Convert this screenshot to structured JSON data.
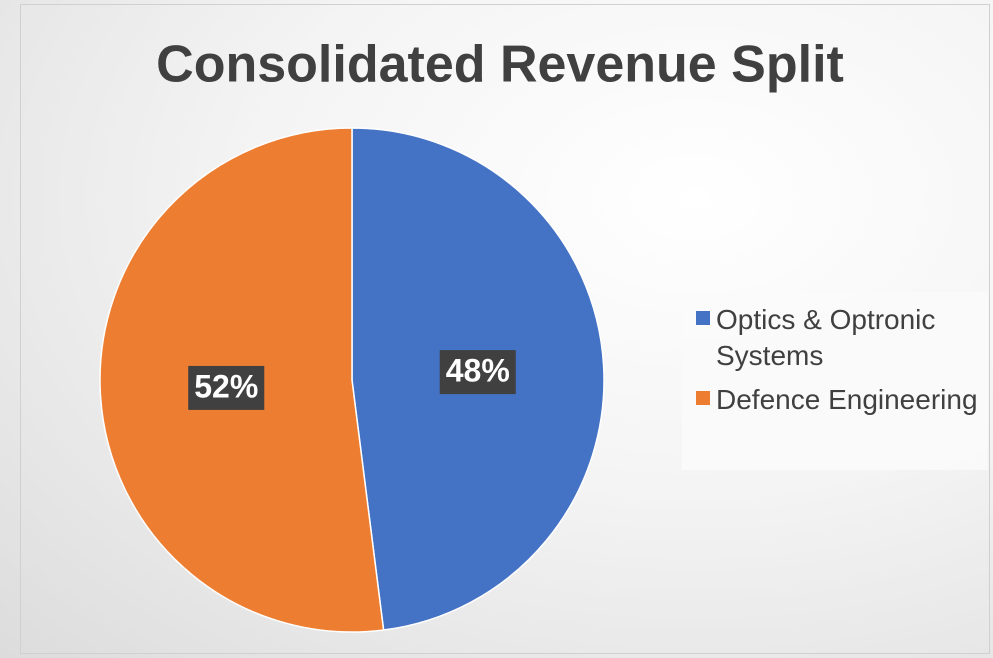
{
  "chart_data": {
    "type": "pie",
    "title": "Consolidated Revenue Split",
    "categories": [
      "Optics & Optronic Systems",
      "Defence Engineering"
    ],
    "values": [
      48,
      52
    ],
    "value_labels": [
      "48%",
      "52%"
    ],
    "colors": [
      "#4472c4",
      "#ed7d31"
    ],
    "legend": "right"
  }
}
